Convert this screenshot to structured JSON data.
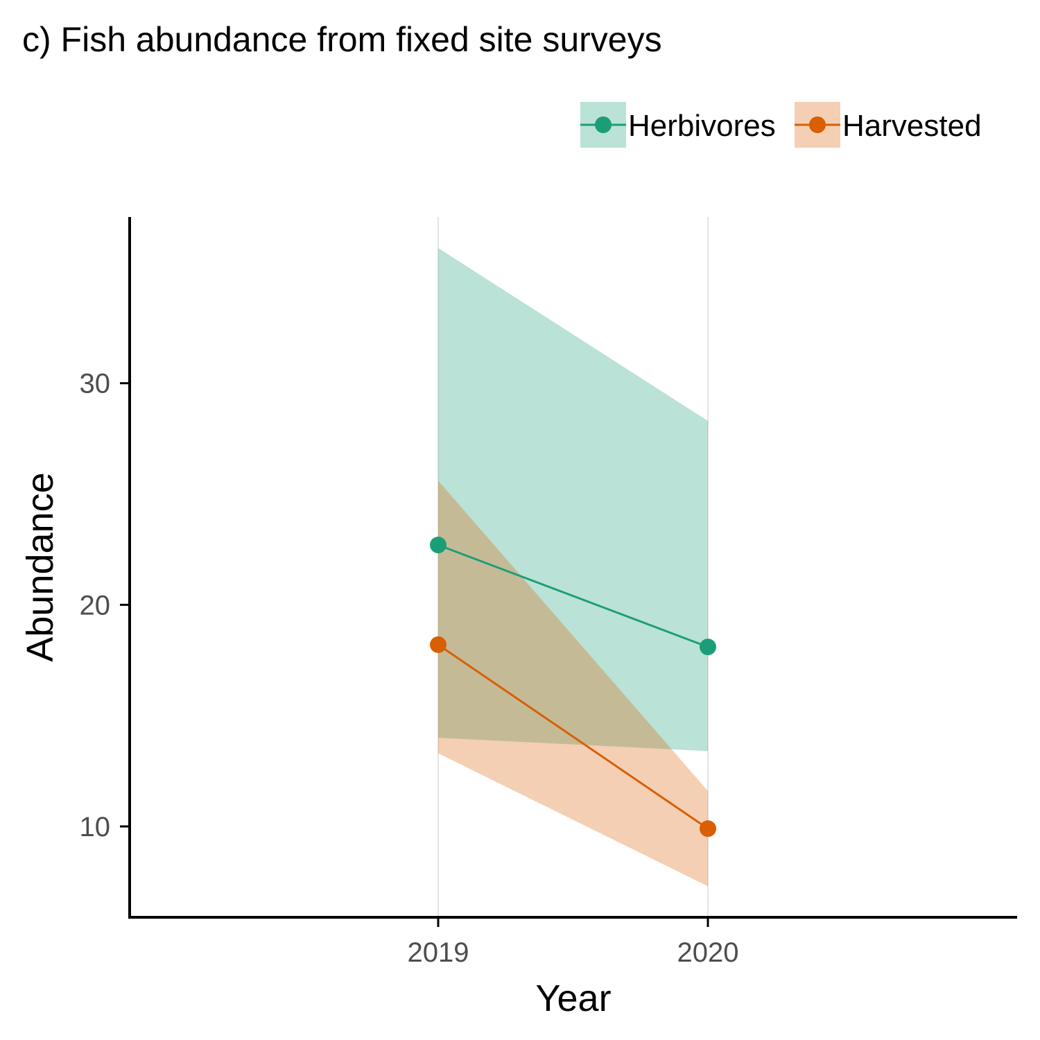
{
  "chart_data": {
    "type": "line",
    "title": "c) Fish abundance from fixed site surveys",
    "xlabel": "Year",
    "ylabel": "Abundance",
    "x": [
      "2019",
      "2020"
    ],
    "yticks": [
      10,
      20,
      30
    ],
    "ylim": [
      5.9,
      37.5
    ],
    "grid": "vertical major gridlines only",
    "legend_position": "top-right",
    "series": [
      {
        "name": "Herbivores",
        "color": "#1b9e77",
        "fill": "#b8e2d6",
        "values": [
          22.7,
          18.1
        ],
        "lower": [
          14.0,
          13.4
        ],
        "upper": [
          36.1,
          28.3
        ]
      },
      {
        "name": "Harvested",
        "color": "#d95f02",
        "fill": "#f3cfb3",
        "values": [
          18.2,
          9.9
        ],
        "lower": [
          13.3,
          7.3
        ],
        "upper": [
          25.6,
          11.6
        ]
      }
    ]
  }
}
